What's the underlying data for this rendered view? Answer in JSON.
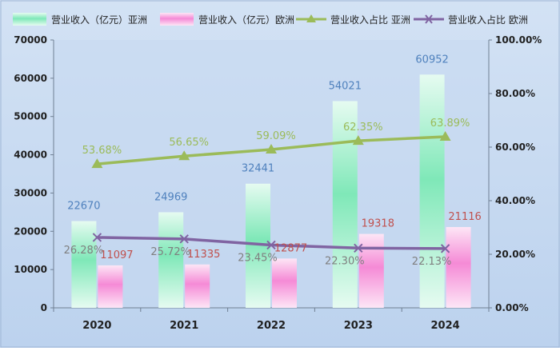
{
  "chart_data": {
    "type": "bar",
    "categories": [
      "2020",
      "2021",
      "2022",
      "2023",
      "2024"
    ],
    "series": [
      {
        "name": "营业收入（亿元）亚洲",
        "type": "bar",
        "axis": "left",
        "values": [
          22670,
          24969,
          32441,
          54021,
          60952
        ],
        "labels": [
          "22670",
          "24969",
          "32441",
          "54021",
          "60952"
        ]
      },
      {
        "name": "营业收入（亿元）欧洲",
        "type": "bar",
        "axis": "left",
        "values": [
          11097,
          11335,
          12877,
          19318,
          21116
        ],
        "labels": [
          "11097",
          "11335",
          "12877",
          "19318",
          "21116"
        ]
      },
      {
        "name": "营业收入占比 亚洲",
        "type": "line",
        "axis": "right",
        "marker": "triangle",
        "values": [
          53.68,
          56.65,
          59.09,
          62.35,
          63.89
        ],
        "labels": [
          "53.68%",
          "56.65%",
          "59.09%",
          "62.35%",
          "63.89%"
        ]
      },
      {
        "name": "营业收入占比 欧洲",
        "type": "line",
        "axis": "right",
        "marker": "x",
        "values": [
          26.28,
          25.72,
          23.45,
          22.3,
          22.13
        ],
        "labels": [
          "26.28%",
          "25.72%",
          "23.45%",
          "22.30%",
          "22.13%"
        ]
      }
    ],
    "y_left": {
      "range": [
        0,
        70000
      ],
      "ticks": [
        "0",
        "10000",
        "20000",
        "30000",
        "40000",
        "50000",
        "60000",
        "70000"
      ]
    },
    "y_right": {
      "range": [
        0,
        100
      ],
      "ticks": [
        "0.00%",
        "20.00%",
        "40.00%",
        "60.00%",
        "80.00%",
        "100.00%"
      ]
    },
    "legend_position": "top",
    "colors": {
      "bar_asia": "#7fe8b8",
      "bar_europe": "#f58ad6",
      "line_asia": "#9bbb59",
      "line_europe": "#8064a2",
      "label_asia_bar": "#4f81bd",
      "label_europe_bar": "#c0504d",
      "label_asia_line": "#9bbb59",
      "label_europe_line": "#7f7f7f",
      "plot_background": "#c6d9f1"
    }
  }
}
